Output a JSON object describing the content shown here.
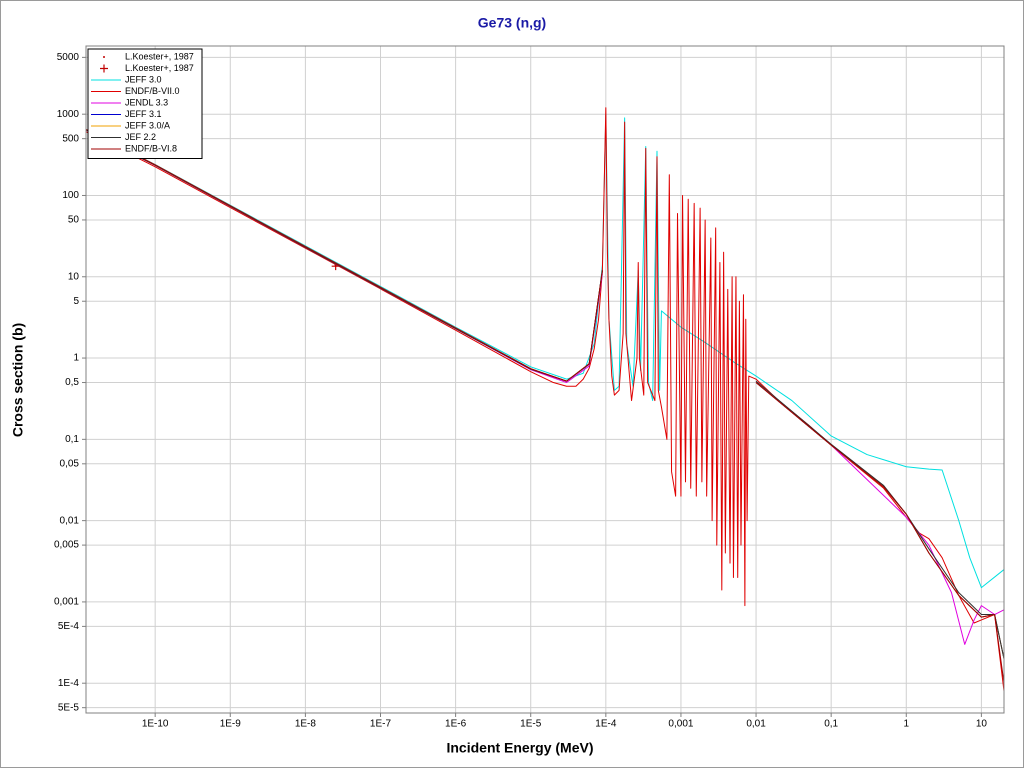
{
  "chart_data": {
    "type": "line",
    "title": "Ge73 (n,g)",
    "x_label": "Incident Energy (MeV)",
    "y_label": "Cross section (b)",
    "xscale": "log",
    "yscale": "log",
    "grid": true,
    "legend": "top-left",
    "xlim": [
      1.2e-11,
      20
    ],
    "ylim": [
      4.3e-05,
      6900
    ],
    "xticks": [
      {
        "value": 1e-10,
        "label": "1E-10"
      },
      {
        "value": 1e-09,
        "label": "1E-9"
      },
      {
        "value": 1e-08,
        "label": "1E-8"
      },
      {
        "value": 1e-07,
        "label": "1E-7"
      },
      {
        "value": 1e-06,
        "label": "1E-6"
      },
      {
        "value": 1e-05,
        "label": "1E-5"
      },
      {
        "value": 0.0001,
        "label": "1E-4"
      },
      {
        "value": 0.001,
        "label": "0,001"
      },
      {
        "value": 0.01,
        "label": "0,01"
      },
      {
        "value": 0.1,
        "label": "0,1"
      },
      1,
      10
    ],
    "yticks": [
      5000,
      1000,
      500,
      100,
      50,
      10,
      5,
      1,
      {
        "value": 0.5,
        "label": "0,5"
      },
      {
        "value": 0.1,
        "label": "0,1"
      },
      {
        "value": 0.05,
        "label": "0,05"
      },
      {
        "value": 0.01,
        "label": "0,01"
      },
      {
        "value": 0.005,
        "label": "0,005"
      },
      {
        "value": 0.001,
        "label": "0,001"
      },
      {
        "value": 0.0005,
        "label": "5E-4"
      },
      {
        "value": 0.0001,
        "label": "1E-4"
      },
      {
        "value": 5e-05,
        "label": "5E-5"
      }
    ],
    "series": [
      {
        "name": "L.Koester+, 1987",
        "color": "#c00000",
        "marker": "dot",
        "x": [
          2.53e-08
        ],
        "values": [
          14
        ]
      },
      {
        "name": "L.Koester+, 1987",
        "color": "#c00000",
        "marker": "plus",
        "x": [
          2.53e-08
        ],
        "values": [
          13.5
        ]
      },
      {
        "name": "JEFF 3.0",
        "color": "#00e0e0",
        "x": [
          1.2e-11,
          1e-10,
          1e-09,
          1e-08,
          1e-07,
          1e-06,
          1e-05,
          3e-05,
          5e-05,
          7e-05,
          9e-05,
          0.0001,
          0.00011,
          0.00013,
          0.00015,
          0.000178,
          0.00019,
          0.00023,
          0.00027,
          0.00029,
          0.00034,
          0.00037,
          0.00042,
          0.00048,
          0.00052,
          0.00055,
          0.001,
          0.002,
          0.005,
          0.01,
          0.03,
          0.1,
          0.3,
          1,
          2,
          3,
          5,
          7,
          10,
          20
        ],
        "values": [
          650,
          240,
          76,
          24,
          7.6,
          2.4,
          0.78,
          0.55,
          0.65,
          1.5,
          14,
          1000,
          3,
          0.4,
          0.45,
          900,
          1.5,
          0.45,
          12,
          0.7,
          400,
          0.5,
          0.3,
          350,
          0.4,
          3.8,
          2.4,
          1.6,
          0.9,
          0.6,
          0.3,
          0.11,
          0.065,
          0.046,
          0.043,
          0.042,
          0.01,
          0.0035,
          0.0015,
          0.0025
        ]
      },
      {
        "name": "ENDF/B-VII.0",
        "color": "#e00000",
        "x": [
          1.2e-11,
          1e-10,
          1e-09,
          1e-08,
          1e-07,
          1e-06,
          1e-05,
          2e-05,
          3e-05,
          4e-05,
          5e-05,
          6e-05,
          7e-05,
          8e-05,
          9e-05,
          0.0001,
          0.000105,
          0.00011,
          0.00012,
          0.00013,
          0.00015,
          0.00017,
          0.000178,
          0.000185,
          0.00022,
          0.00026,
          0.00027,
          0.00028,
          0.00032,
          0.00034,
          0.00036,
          0.00045,
          0.00048,
          0.0005,
          0.00055,
          0.00065,
          0.0007,
          0.00075,
          0.00085,
          0.0009,
          0.001,
          0.00105,
          0.00115,
          0.00125,
          0.00135,
          0.0015,
          0.0016,
          0.0018,
          0.0019,
          0.0021,
          0.0022,
          0.0025,
          0.0026,
          0.0029,
          0.003,
          0.0033,
          0.0035,
          0.0037,
          0.0039,
          0.0042,
          0.0045,
          0.0048,
          0.005,
          0.0054,
          0.0057,
          0.006,
          0.0063,
          0.0068,
          0.0071,
          0.0073,
          0.0076,
          0.008,
          0.01,
          0.02,
          0.05,
          0.1,
          0.2,
          0.5,
          1,
          1.5,
          2,
          3,
          5,
          8,
          10,
          15,
          20
        ],
        "values": [
          610,
          225,
          71,
          22.5,
          7.1,
          2.2,
          0.68,
          0.5,
          0.45,
          0.45,
          0.55,
          0.75,
          1.3,
          3,
          12,
          1200,
          20,
          3,
          0.6,
          0.35,
          0.4,
          2,
          800,
          2,
          0.3,
          1,
          15,
          1,
          0.35,
          380,
          0.5,
          0.3,
          300,
          0.4,
          0.25,
          0.1,
          180,
          0.04,
          0.02,
          60,
          0.02,
          100,
          0.03,
          90,
          0.025,
          80,
          0.02,
          70,
          0.03,
          50,
          0.02,
          30,
          0.01,
          40,
          0.005,
          15,
          0.0014,
          20,
          0.004,
          7,
          0.003,
          10,
          0.002,
          10,
          0.002,
          5,
          0.005,
          6,
          0.0009,
          3,
          0.01,
          0.6,
          0.55,
          0.3,
          0.15,
          0.085,
          0.05,
          0.025,
          0.011,
          0.007,
          0.006,
          0.0035,
          0.0012,
          0.00055,
          0.0006,
          0.0007,
          8e-05
        ]
      },
      {
        "name": "JENDL 3.3",
        "color": "#e000e0",
        "x": [
          1.2e-11,
          1e-10,
          1e-08,
          1e-06,
          1e-05,
          3e-05,
          6e-05,
          9e-05,
          0.001,
          0.01,
          0.1,
          1,
          2,
          4,
          6,
          8,
          10,
          15,
          20
        ],
        "values": [
          640,
          235,
          23,
          2.3,
          0.72,
          0.5,
          0.8,
          11,
          null,
          0.5,
          0.085,
          0.011,
          0.005,
          0.0013,
          0.0003,
          0.0006,
          0.0009,
          0.0007,
          0.0008
        ]
      },
      {
        "name": "JEFF 3.1",
        "color": "#0000d0",
        "x": [
          1.2e-11,
          1e-10,
          1e-08,
          1e-06,
          1e-05,
          3e-05,
          6e-05,
          9e-05,
          0.001,
          0.01,
          0.1,
          0.5,
          1,
          2,
          5,
          10,
          15,
          20
        ],
        "values": [
          650,
          238,
          23.5,
          2.35,
          0.74,
          0.52,
          0.85,
          12,
          null,
          0.5,
          0.085,
          0.026,
          0.012,
          0.004,
          0.0012,
          0.00065,
          0.0007,
          0.0002
        ]
      },
      {
        "name": "JEFF 3.0/A",
        "color": "#f0a000",
        "x": [
          1.2e-11,
          1e-10,
          1e-08,
          1e-06,
          1e-05,
          3e-05,
          6e-05,
          9e-05,
          0.001,
          0.01,
          0.1,
          0.5,
          1,
          2,
          5,
          10,
          15,
          20
        ],
        "values": [
          650,
          238,
          23.5,
          2.35,
          0.74,
          0.52,
          0.85,
          12,
          null,
          0.5,
          0.085,
          0.026,
          0.012,
          0.004,
          0.0012,
          0.00065,
          0.0007,
          0.0002
        ]
      },
      {
        "name": "JEF 2.2",
        "color": "#303030",
        "x": [
          1.2e-11,
          1e-10,
          1e-08,
          1e-06,
          1e-05,
          3e-05,
          6e-05,
          9e-05,
          0.001,
          0.01,
          0.1,
          0.5,
          1,
          2,
          5,
          10,
          15,
          20
        ],
        "values": [
          640,
          235,
          23,
          2.3,
          0.73,
          0.52,
          0.84,
          12,
          null,
          0.52,
          0.087,
          0.027,
          0.012,
          0.0045,
          0.0013,
          0.0007,
          0.0007,
          0.0002
        ]
      },
      {
        "name": "ENDF/B-VI.8",
        "color": "#a00000",
        "x": [
          1.2e-11,
          1e-10,
          1e-08,
          1e-06,
          1e-05,
          3e-05,
          6e-05,
          9e-05,
          0.001,
          0.01,
          0.1,
          0.5,
          1,
          2,
          5,
          10,
          15,
          20
        ],
        "values": [
          650,
          238,
          23.5,
          2.35,
          0.74,
          0.52,
          0.85,
          12,
          null,
          0.5,
          0.085,
          0.026,
          0.012,
          0.004,
          0.0012,
          0.00065,
          0.0007,
          0.0001
        ]
      }
    ]
  }
}
